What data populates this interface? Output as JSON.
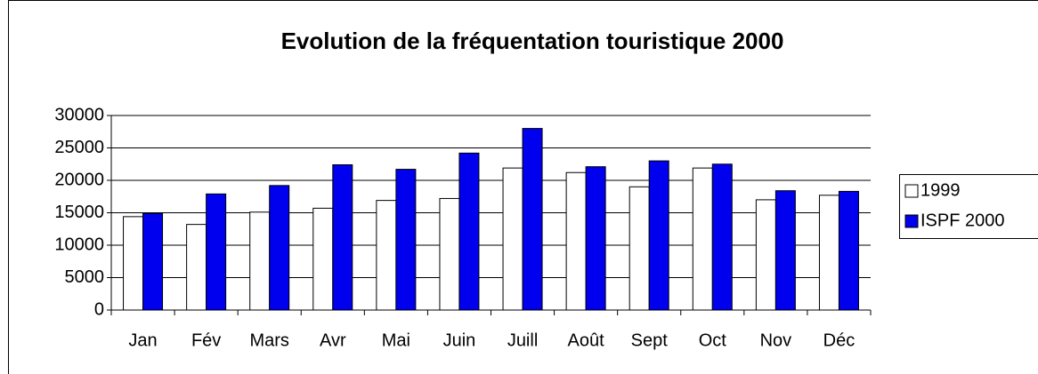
{
  "chart_data": {
    "type": "bar",
    "title": "Evolution de la fréquentation touristique 2000",
    "categories": [
      "Jan",
      "Fév",
      "Mars",
      "Avr",
      "Mai",
      "Juin",
      "Juill",
      "Août",
      "Sept",
      "Oct",
      "Nov",
      "Déc"
    ],
    "series": [
      {
        "name": "1999",
        "color": "#ffffff",
        "values": [
          14400,
          13200,
          15100,
          15700,
          16900,
          17200,
          21900,
          21200,
          19000,
          21900,
          17000,
          17700
        ]
      },
      {
        "name": "ISPF 2000",
        "color": "#0000ee",
        "values": [
          14900,
          17900,
          19200,
          22400,
          21700,
          24200,
          28000,
          22100,
          23000,
          22500,
          18400,
          18300
        ]
      }
    ],
    "ylim": [
      0,
      30000
    ],
    "yticks": [
      0,
      5000,
      10000,
      15000,
      20000,
      25000,
      30000
    ],
    "grid": true,
    "legend": "right"
  }
}
